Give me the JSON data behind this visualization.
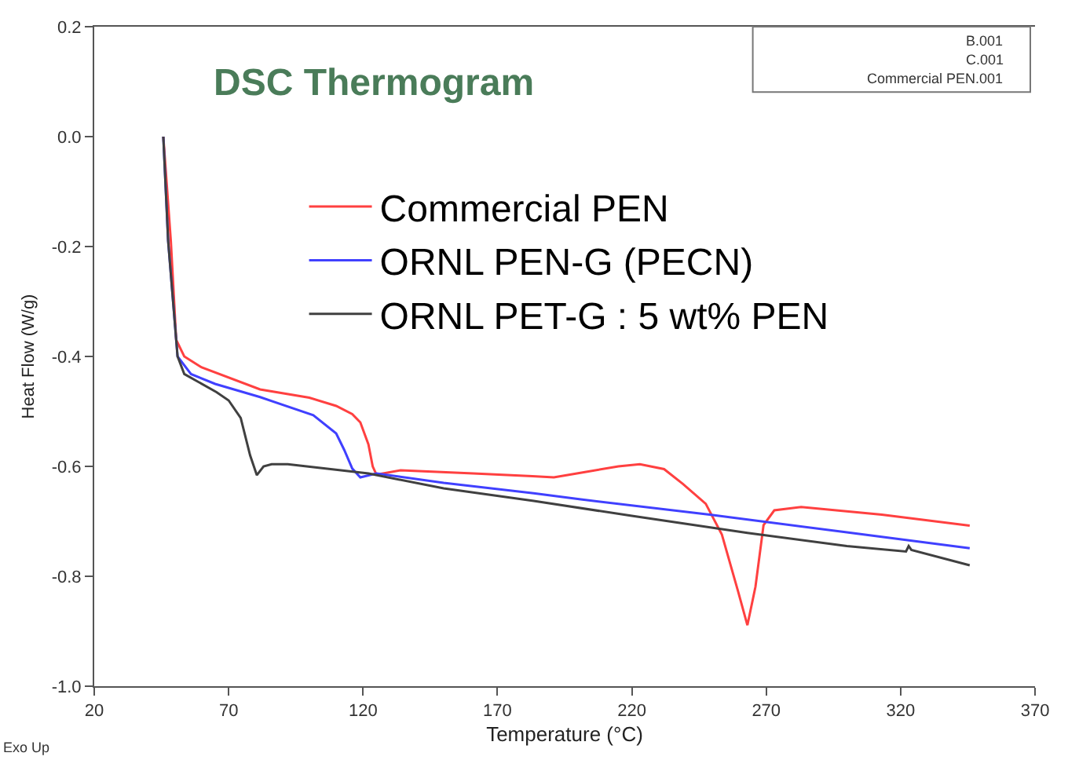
{
  "chart_data": {
    "type": "line",
    "title": "DSC Thermogram",
    "xlabel": "Temperature (°C)",
    "ylabel": "Heat Flow (W/g)",
    "annotations": [
      "B.001",
      "C.001",
      "Commercial PEN.001",
      "Exo Up"
    ],
    "series": [
      {
        "name": "Commercial PEN",
        "color": "#ff4040",
        "x": [
          45.7,
          48.5,
          50.5,
          53.5,
          60,
          81.7,
          100,
          110,
          116,
          119,
          122,
          123.6,
          125,
          134,
          161,
          183,
          191,
          203,
          215,
          223,
          232,
          239,
          247.5,
          253.5,
          259.5,
          263,
          266,
          269,
          273,
          283,
          313,
          345.7
        ],
        "values": [
          0.0,
          -0.19,
          -0.37,
          -0.4,
          -0.42,
          -0.46,
          -0.475,
          -0.49,
          -0.505,
          -0.52,
          -0.56,
          -0.6,
          -0.615,
          -0.607,
          -0.613,
          -0.618,
          -0.62,
          -0.61,
          -0.6,
          -0.596,
          -0.605,
          -0.632,
          -0.668,
          -0.724,
          -0.827,
          -0.889,
          -0.819,
          -0.707,
          -0.68,
          -0.674,
          -0.688,
          -0.708
        ]
      },
      {
        "name": "ORNL PEN-G (PECN)",
        "color": "#4040ff",
        "x": [
          45.7,
          47.5,
          51,
          56,
          65,
          81.7,
          101.5,
          110,
          113,
          116,
          119,
          125,
          150,
          183.5,
          201,
          249,
          300,
          345.7
        ],
        "values": [
          0.0,
          -0.19,
          -0.4,
          -0.432,
          -0.45,
          -0.474,
          -0.507,
          -0.54,
          -0.57,
          -0.604,
          -0.62,
          -0.613,
          -0.63,
          -0.649,
          -0.66,
          -0.688,
          -0.72,
          -0.749
        ]
      },
      {
        "name": "ORNL PET-G : 5 wt% PEN",
        "color": "#404040",
        "x": [
          45.7,
          47.5,
          51,
          53.5,
          65.5,
          70,
          74.5,
          78,
          80.5,
          83,
          86,
          92,
          122,
          150,
          183.5,
          220,
          263,
          300,
          322,
          323,
          324,
          345.7
        ],
        "values": [
          0.0,
          -0.19,
          -0.4,
          -0.432,
          -0.465,
          -0.48,
          -0.512,
          -0.58,
          -0.616,
          -0.6,
          -0.596,
          -0.596,
          -0.613,
          -0.64,
          -0.663,
          -0.69,
          -0.721,
          -0.745,
          -0.755,
          -0.745,
          -0.752,
          -0.78
        ]
      }
    ],
    "xlim": [
      20,
      370
    ],
    "xticks": [
      20,
      70,
      120,
      170,
      220,
      270,
      320,
      370
    ],
    "ylim": [
      -1.0,
      0.2
    ],
    "yticks": [
      {
        "value": -1.0,
        "label": "-1.0"
      },
      {
        "value": -0.8,
        "label": "-0.8"
      },
      {
        "value": -0.6,
        "label": "-0.6"
      },
      {
        "value": -0.4,
        "label": "-0.4"
      },
      {
        "value": -0.2,
        "label": "-0.2"
      },
      {
        "value": 0.0,
        "label": "0.0"
      },
      0.2
    ],
    "legend": "top",
    "marker": "none",
    "line_style": "solid"
  }
}
